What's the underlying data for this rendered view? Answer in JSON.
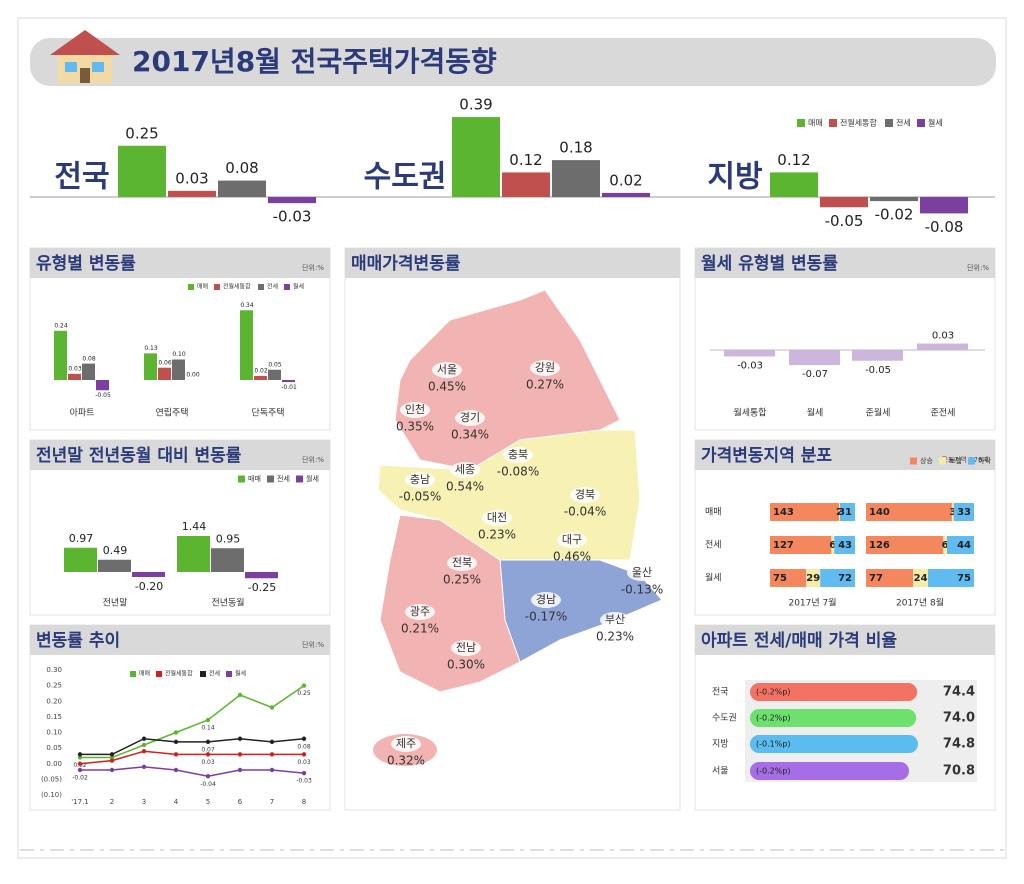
{
  "header": {
    "title": "2017년8월 전국주택가격동향"
  },
  "chart_data": [
    {
      "type": "summary-bar",
      "categories": [
        "전국",
        "수도권",
        "지방"
      ],
      "series": [
        {
          "name": "매매",
          "color": "#5cb531",
          "values": [
            0.25,
            0.39,
            0.12
          ]
        },
        {
          "name": "전월세통합",
          "color": "#c0504d",
          "values": [
            0.03,
            0.12,
            -0.05
          ]
        },
        {
          "name": "전세",
          "color": "#6d6d6d",
          "values": [
            0.08,
            0.18,
            -0.02
          ]
        },
        {
          "name": "월세",
          "color": "#7b3fa0",
          "values": [
            -0.03,
            0.02,
            -0.08
          ]
        }
      ]
    },
    {
      "type": "bar",
      "title": "유형별 변동률",
      "unit": "단위:%",
      "categories": [
        "아파트",
        "연립주택",
        "단독주택"
      ],
      "series": [
        {
          "name": "매매",
          "color": "#5cb531",
          "values": [
            0.24,
            0.13,
            0.34
          ],
          "value_labels": [
            "0.24",
            "0.13",
            "0.34"
          ]
        },
        {
          "name": "전월세통합",
          "color": "#c0504d",
          "values": [
            0.03,
            0.06,
            0.02
          ],
          "value_labels": [
            "0.03",
            "0.06",
            "0.02"
          ]
        },
        {
          "name": "전세",
          "color": "#6d6d6d",
          "values": [
            0.08,
            0.1,
            0.05
          ],
          "value_labels": [
            "0.08",
            "0.10",
            "0.05"
          ]
        },
        {
          "name": "월세",
          "color": "#7b3fa0",
          "values": [
            -0.05,
            0,
            -0.01
          ],
          "value_labels": [
            "-0.05",
            "0.00",
            "-0.01"
          ]
        }
      ]
    },
    {
      "type": "bar",
      "title": "전년말 전년동월 대비 변동률",
      "unit": "단위:%",
      "categories": [
        "전년말",
        "전년동월"
      ],
      "series": [
        {
          "name": "매매",
          "color": "#5cb531",
          "values": [
            0.97,
            1.44
          ]
        },
        {
          "name": "전세",
          "color": "#6d6d6d",
          "values": [
            0.49,
            0.95
          ]
        },
        {
          "name": "월세",
          "color": "#7b3fa0",
          "values": [
            -0.2,
            -0.25
          ],
          "value_labels": [
            "-0.20",
            "-0.25"
          ]
        }
      ]
    },
    {
      "type": "line",
      "title": "변동률 추이",
      "unit": "단위:%",
      "categories": [
        "'17.1",
        "2",
        "3",
        "4",
        "5",
        "6",
        "7",
        "8"
      ],
      "ylim": [
        -0.1,
        0.3
      ],
      "yticks": [
        {
          "value": 0.3,
          "label": "0.30"
        },
        {
          "value": 0.25,
          "label": "0.25"
        },
        {
          "value": 0.2,
          "label": "0.20"
        },
        {
          "value": 0.15,
          "label": "0.15"
        },
        {
          "value": 0.1,
          "label": "0.10"
        },
        {
          "value": 0.05,
          "label": "0.05"
        },
        {
          "value": 0,
          "label": "0.00"
        },
        {
          "value": -0.05,
          "label": "(0.05)"
        },
        {
          "value": -0.1,
          "label": "(0.10)"
        }
      ],
      "series": [
        {
          "name": "매매",
          "color": "#5cb531",
          "values": [
            0.02,
            0.02,
            0.06,
            0.1,
            0.14,
            0.22,
            0.18,
            0.25
          ],
          "value_labels": [
            "0.02",
            null,
            null,
            null,
            "0.14",
            null,
            null,
            "0.25"
          ]
        },
        {
          "name": "전월세통합",
          "color": "#d02020",
          "values": [
            0,
            0.01,
            0.04,
            0.03,
            0.03,
            0.03,
            0.03,
            0.03
          ],
          "value_labels": [
            null,
            null,
            null,
            null,
            "0.03",
            null,
            null,
            "0.03"
          ]
        },
        {
          "name": "전세",
          "color": "#222222",
          "values": [
            0.03,
            0.03,
            0.08,
            0.07,
            0.07,
            0.08,
            0.07,
            0.08
          ],
          "value_labels": [
            null,
            null,
            null,
            null,
            "0.07",
            null,
            null,
            "0.08"
          ]
        },
        {
          "name": "월세",
          "color": "#7b3fa0",
          "values": [
            -0.02,
            -0.02,
            -0.01,
            -0.02,
            -0.04,
            -0.02,
            -0.02,
            -0.03
          ],
          "value_labels": [
            "-0.02",
            null,
            null,
            null,
            "-0.04",
            null,
            null,
            "-0.03"
          ]
        }
      ]
    },
    {
      "type": "map",
      "title": "매매가격변동률",
      "categories": [
        "서울",
        "강원",
        "인천",
        "경기",
        "충북",
        "충남",
        "세종",
        "경북",
        "대전",
        "대구",
        "전북",
        "울산",
        "경남",
        "부산",
        "광주",
        "전남",
        "제주"
      ],
      "values": [
        0.45,
        0.27,
        0.35,
        0.34,
        -0.08,
        -0.05,
        0.54,
        -0.04,
        0.23,
        0.46,
        0.25,
        -0.13,
        -0.17,
        0.23,
        0.21,
        0.3,
        0.32
      ],
      "value_labels": [
        "0.45%",
        "0.27%",
        "0.35%",
        "0.34%",
        "-0.08%",
        "-0.05%",
        "0.54%",
        "-0.04%",
        "0.23%",
        "0.46%",
        "0.25%",
        "-0.13%",
        "-0.17%",
        "0.23%",
        "0.21%",
        "0.30%",
        "0.32%"
      ]
    },
    {
      "type": "bar",
      "title": "월세 유형별 변동률",
      "unit": "단위:%",
      "categories": [
        "월세통합",
        "월세",
        "준월세",
        "준전세"
      ],
      "series": [
        {
          "name": "월세",
          "color": "#cdb6db",
          "values": [
            -0.03,
            -0.07,
            -0.05,
            0.03
          ]
        }
      ]
    },
    {
      "type": "stacked-bar",
      "title": "가격변동지역 분포",
      "note": "공표지역 176개",
      "categories": [
        "매매",
        "전세",
        "월세"
      ],
      "groups": [
        {
          "name": "2017년 7월",
          "series": [
            {
              "name": "상승",
              "color": "#f5875e",
              "values": [
                143,
                127,
                75
              ]
            },
            {
              "name": "보합",
              "color": "#f6eca6",
              "values": [
                2,
                6,
                29
              ]
            },
            {
              "name": "하락",
              "color": "#5fbbf0",
              "values": [
                31,
                43,
                72
              ]
            }
          ]
        },
        {
          "name": "2017년 8월",
          "series": [
            {
              "name": "상승",
              "color": "#f5875e",
              "values": [
                140,
                126,
                77
              ]
            },
            {
              "name": "보합",
              "color": "#f6eca6",
              "values": [
                3,
                6,
                24
              ]
            },
            {
              "name": "하락",
              "color": "#5fbbf0",
              "values": [
                33,
                44,
                75
              ]
            }
          ]
        }
      ]
    },
    {
      "type": "hbar",
      "title": "아파트 전세/매매 가격 비율",
      "categories": [
        "전국",
        "수도권",
        "지방",
        "서울"
      ],
      "values": [
        74.4,
        74.0,
        74.8,
        70.8
      ],
      "value_labels": [
        "74.4",
        "74.0",
        "74.8",
        "70.8"
      ],
      "annotations": [
        "(-0.2%p)",
        "(-0.2%p)",
        "(-0.1%p)",
        "(-0.2%p)"
      ],
      "colors": [
        "#f47264",
        "#6ee06e",
        "#5bbcf0",
        "#a66ee6"
      ]
    }
  ]
}
